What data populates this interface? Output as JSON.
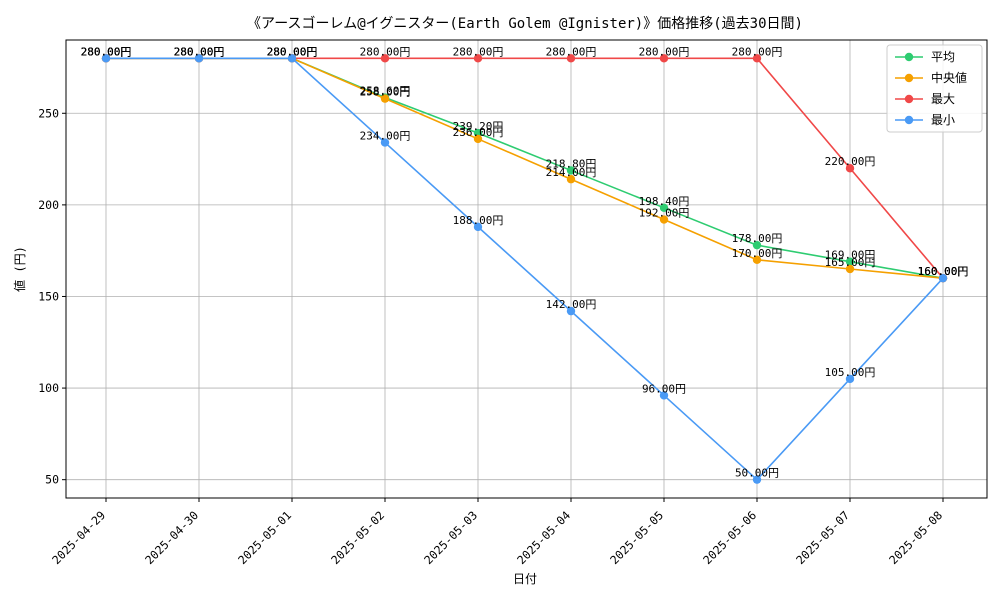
{
  "chart_data": {
    "type": "line",
    "title": "《アースゴーレム@イグニスター(Earth Golem @Ignister)》価格推移(過去30日間)",
    "xlabel": "日付",
    "ylabel": "値 (円)",
    "ylim": [
      40,
      290
    ],
    "yticks": [
      50,
      100,
      150,
      200,
      250
    ],
    "grid": true,
    "legend_position": "top-right",
    "categories": [
      "2025-04-29",
      "2025-04-30",
      "2025-05-01",
      "2025-05-02",
      "2025-05-03",
      "2025-05-04",
      "2025-05-05",
      "2025-05-06",
      "2025-05-07",
      "2025-05-08"
    ],
    "series": [
      {
        "name": "平均",
        "color": "#2ecc71",
        "values": [
          280,
          280,
          280,
          258.6,
          239.2,
          218.8,
          198.4,
          178,
          169,
          160
        ]
      },
      {
        "name": "中央値",
        "color": "#f5a000",
        "values": [
          280,
          280,
          280,
          258,
          236,
          214,
          192,
          170,
          165,
          160
        ]
      },
      {
        "name": "最大",
        "color": "#f04848",
        "values": [
          280,
          280,
          280,
          280,
          280,
          280,
          280,
          280,
          220,
          160
        ]
      },
      {
        "name": "最小",
        "color": "#4a9af5",
        "values": [
          280,
          280,
          280,
          234,
          188,
          142,
          96,
          50,
          105,
          160
        ]
      }
    ],
    "value_suffix": "円"
  }
}
